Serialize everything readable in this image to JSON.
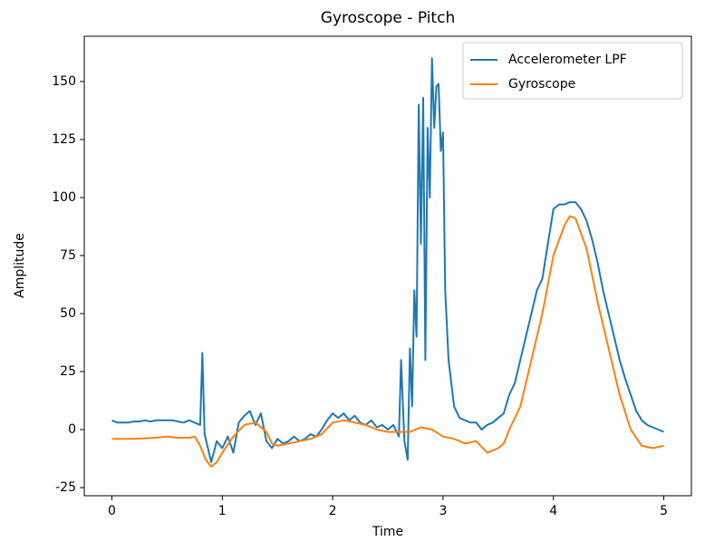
{
  "chart_data": {
    "type": "line",
    "title": "Gyroscope - Pitch",
    "x_label": "Time",
    "y_label": "Amplitude",
    "xlim": [
      -0.25,
      5.25
    ],
    "ylim": [
      -28.5,
      169.5
    ],
    "xticks": [
      0,
      1,
      2,
      3,
      4,
      5
    ],
    "yticks": [
      -25,
      0,
      25,
      50,
      75,
      100,
      125,
      150
    ],
    "legend": "upper right",
    "grid": false,
    "series": [
      {
        "name": "Accelerometer LPF",
        "color": "#1f77b4",
        "x": [
          0,
          0.05,
          0.1,
          0.15,
          0.2,
          0.25,
          0.3,
          0.35,
          0.4,
          0.45,
          0.5,
          0.55,
          0.6,
          0.65,
          0.7,
          0.75,
          0.8,
          0.82,
          0.84,
          0.9,
          0.95,
          1.0,
          1.05,
          1.1,
          1.15,
          1.2,
          1.25,
          1.3,
          1.35,
          1.4,
          1.45,
          1.5,
          1.55,
          1.6,
          1.65,
          1.7,
          1.75,
          1.8,
          1.85,
          1.9,
          1.95,
          2.0,
          2.05,
          2.1,
          2.15,
          2.2,
          2.25,
          2.3,
          2.35,
          2.4,
          2.45,
          2.5,
          2.55,
          2.6,
          2.62,
          2.65,
          2.68,
          2.7,
          2.72,
          2.74,
          2.76,
          2.78,
          2.8,
          2.82,
          2.84,
          2.86,
          2.88,
          2.9,
          2.92,
          2.94,
          2.96,
          2.98,
          3.0,
          3.02,
          3.05,
          3.1,
          3.15,
          3.2,
          3.25,
          3.3,
          3.35,
          3.4,
          3.45,
          3.5,
          3.55,
          3.6,
          3.65,
          3.7,
          3.75,
          3.8,
          3.85,
          3.9,
          3.95,
          4.0,
          4.05,
          4.1,
          4.15,
          4.2,
          4.25,
          4.3,
          4.35,
          4.4,
          4.45,
          4.5,
          4.55,
          4.6,
          4.65,
          4.7,
          4.75,
          4.8,
          4.85,
          4.9,
          4.95,
          5.0
        ],
        "values": [
          4,
          3,
          3,
          3,
          3.5,
          3.5,
          4,
          3.5,
          4,
          4,
          4,
          4,
          3.5,
          3,
          4,
          3,
          2,
          33,
          -2,
          -14,
          -5,
          -8,
          -3,
          -10,
          3,
          6,
          8,
          2,
          7,
          -5,
          -8,
          -4,
          -6,
          -5,
          -3,
          -5,
          -4,
          -2,
          -3,
          0,
          4,
          7,
          5,
          7,
          4,
          6,
          3,
          2,
          4,
          1,
          2,
          0,
          2,
          -3,
          30,
          -5,
          -13,
          35,
          10,
          60,
          40,
          140,
          80,
          143,
          30,
          130,
          100,
          160,
          130,
          148,
          149,
          120,
          128,
          60,
          30,
          10,
          5,
          4,
          3,
          3,
          0,
          2,
          3,
          5,
          7,
          15,
          20,
          30,
          40,
          50,
          60,
          65,
          80,
          95,
          97,
          97,
          98,
          98,
          95,
          90,
          82,
          72,
          60,
          50,
          40,
          30,
          22,
          15,
          8,
          4,
          2,
          1,
          0,
          -1
        ]
      },
      {
        "name": "Gyroscope",
        "color": "#ff7f0e",
        "x": [
          0,
          0.2,
          0.4,
          0.5,
          0.6,
          0.7,
          0.75,
          0.8,
          0.85,
          0.9,
          0.95,
          1.0,
          1.1,
          1.2,
          1.3,
          1.4,
          1.45,
          1.5,
          1.6,
          1.7,
          1.8,
          1.9,
          2.0,
          2.1,
          2.2,
          2.3,
          2.4,
          2.5,
          2.6,
          2.7,
          2.8,
          2.9,
          3.0,
          3.1,
          3.2,
          3.3,
          3.4,
          3.5,
          3.55,
          3.6,
          3.7,
          3.8,
          3.9,
          4.0,
          4.1,
          4.15,
          4.2,
          4.3,
          4.4,
          4.5,
          4.6,
          4.7,
          4.8,
          4.9,
          5.0
        ],
        "values": [
          -4,
          -4,
          -3.5,
          -3,
          -3.5,
          -3.5,
          -3,
          -7,
          -13,
          -16,
          -14,
          -10,
          -3,
          2,
          3,
          -1,
          -6,
          -7,
          -6,
          -5,
          -4,
          -2,
          3,
          4,
          3,
          2,
          0,
          -1,
          -1,
          -1,
          1,
          0,
          -3,
          -4,
          -6,
          -5,
          -10,
          -8,
          -6,
          0,
          10,
          30,
          50,
          75,
          88,
          92,
          91,
          78,
          55,
          35,
          15,
          0,
          -7,
          -8,
          -7
        ]
      }
    ]
  }
}
